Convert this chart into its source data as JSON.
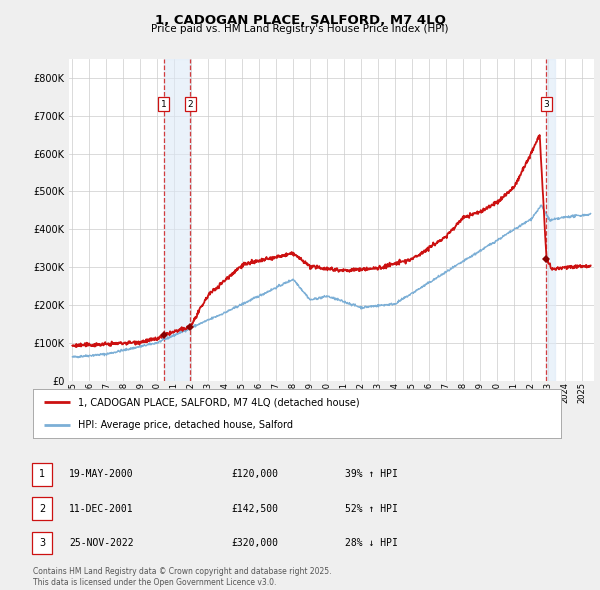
{
  "title": "1, CADOGAN PLACE, SALFORD, M7 4LQ",
  "subtitle": "Price paid vs. HM Land Registry's House Price Index (HPI)",
  "background_color": "#efefef",
  "plot_background": "#ffffff",
  "transactions": [
    {
      "num": 1,
      "date": 2000.38,
      "price": 120000,
      "label": "1",
      "pct": "39%",
      "dir": "↑",
      "date_str": "19-MAY-2000"
    },
    {
      "num": 2,
      "date": 2001.95,
      "price": 142500,
      "label": "2",
      "pct": "52%",
      "dir": "↑",
      "date_str": "11-DEC-2001"
    },
    {
      "num": 3,
      "date": 2022.9,
      "price": 320000,
      "label": "3",
      "pct": "28%",
      "dir": "↓",
      "date_str": "25-NOV-2022"
    }
  ],
  "hpi_color": "#7cafd6",
  "price_color": "#cc1111",
  "marker_color": "#880000",
  "vline_color": "#cc1111",
  "shade_color": "#ddeaf7",
  "shade_alpha": 0.6,
  "ylim": [
    0,
    850000
  ],
  "xlim": [
    1994.8,
    2025.7
  ],
  "legend_label_red": "1, CADOGAN PLACE, SALFORD, M7 4LQ (detached house)",
  "legend_label_blue": "HPI: Average price, detached house, Salford",
  "table_rows": [
    [
      "1",
      "19-MAY-2000",
      "£120,000",
      "39% ↑ HPI"
    ],
    [
      "2",
      "11-DEC-2001",
      "£142,500",
      "52% ↑ HPI"
    ],
    [
      "3",
      "25-NOV-2022",
      "£320,000",
      "28% ↓ HPI"
    ]
  ],
  "footer": "Contains HM Land Registry data © Crown copyright and database right 2025.\nThis data is licensed under the Open Government Licence v3.0."
}
